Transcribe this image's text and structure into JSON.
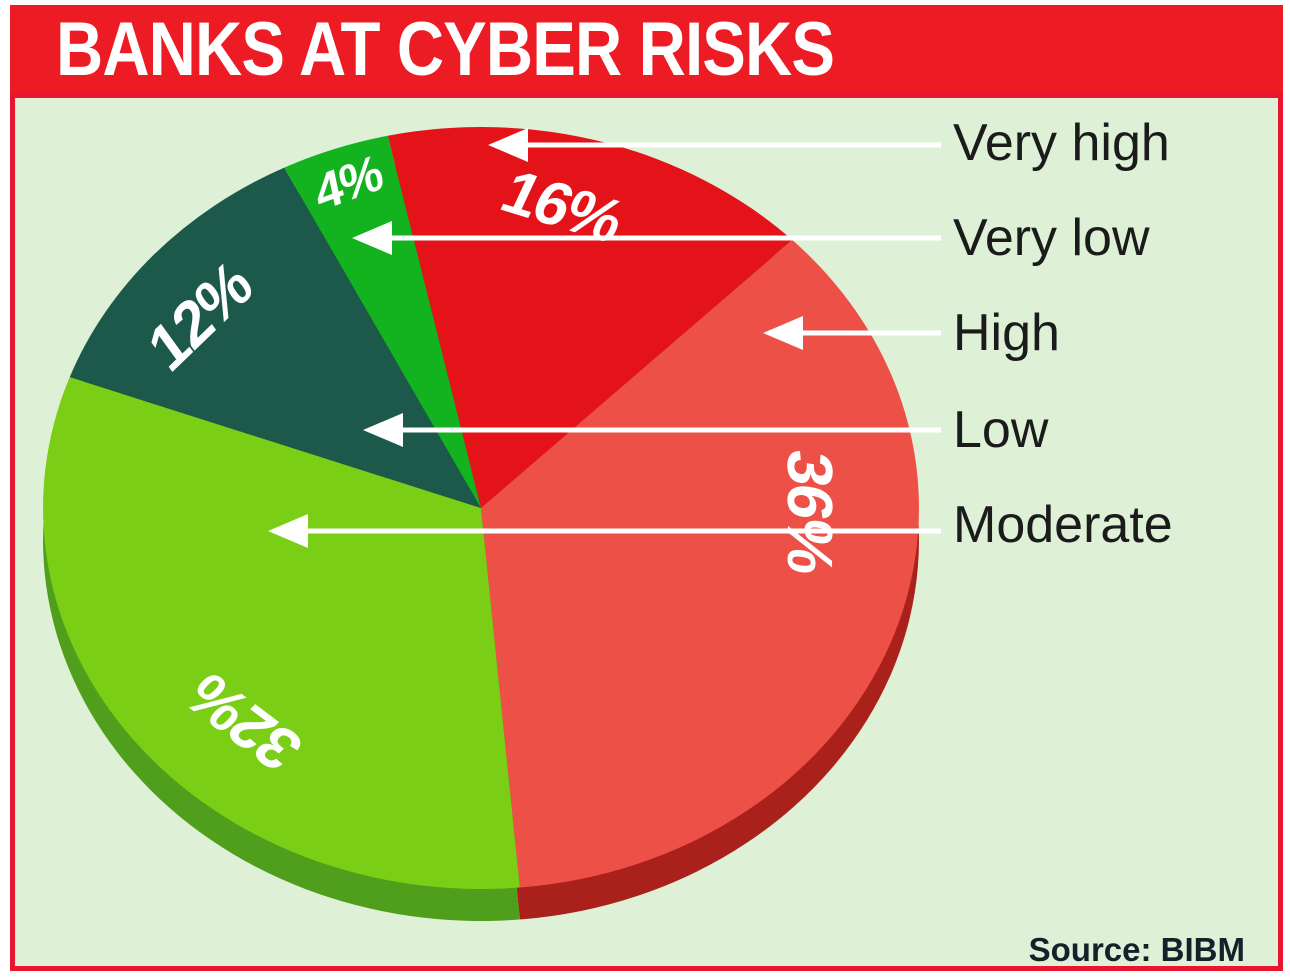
{
  "title": "BANKS AT CYBER RISKS",
  "source_label": "Source: BIBM",
  "legend": [
    {
      "label": "Very high"
    },
    {
      "label": "Very low"
    },
    {
      "label": "High"
    },
    {
      "label": "Low"
    },
    {
      "label": "Moderate"
    }
  ],
  "colors": {
    "header_red": "#ed1c24",
    "frame_red": "#e9152f",
    "board_background": "#def1d7",
    "arrow_white": "#ffffff",
    "legend_text": "#1b1b1b"
  },
  "chart_data": {
    "type": "pie",
    "title": "BANKS AT CYBER RISKS",
    "unit": "%",
    "source": "BIBM",
    "start_angle_deg": -12.3,
    "direction": "clockwise",
    "legend_position": "right",
    "style": "3d-pie-with-rim",
    "slices": [
      {
        "label": "Very high",
        "value": 16,
        "display": "16%",
        "color": "#e31319",
        "rim_color": "#9e1511"
      },
      {
        "label": "High",
        "value": 36,
        "display": "36%",
        "color": "#ec5047",
        "rim_color": "#a9211a"
      },
      {
        "label": "Moderate",
        "value": 32,
        "display": "32%",
        "color": "#7bce16",
        "rim_color": "#4f9e1c"
      },
      {
        "label": "Low",
        "value": 12,
        "display": "12%",
        "color": "#1c594a",
        "rim_color": "#123f35"
      },
      {
        "label": "Very low",
        "value": 4,
        "display": "4%",
        "color": "#12b31f",
        "rim_color": "#0c7d15"
      }
    ]
  }
}
